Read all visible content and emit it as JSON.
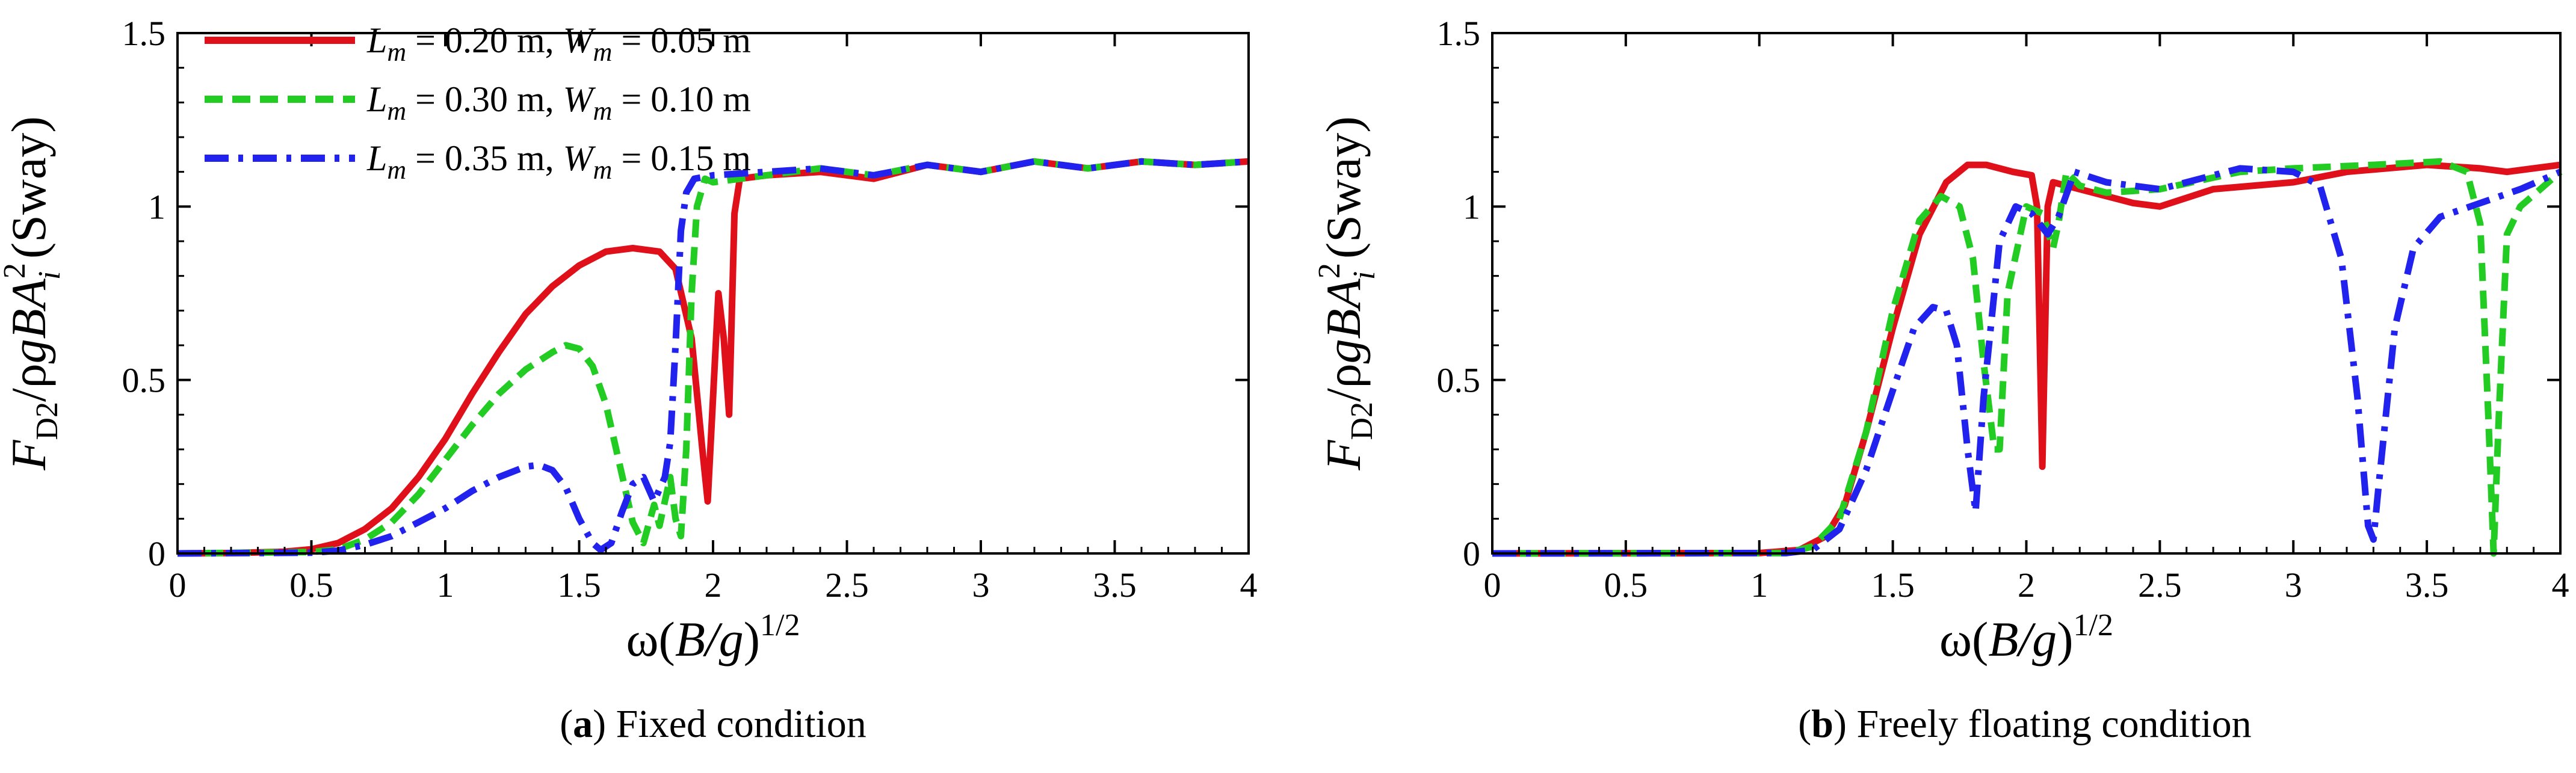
{
  "chart_data": [
    {
      "type": "line",
      "caption_label": "a",
      "caption_text": " Fixed condition",
      "xlabel": {
        "main": "ω(",
        "italic": "B/g",
        "close": ")",
        "sup": "1/2"
      },
      "ylabel": {
        "f": "F",
        "sub": "D2",
        "mid": "/ρ",
        "g": "gBA",
        "sup": "2",
        "sub2": "i",
        "tail": " (Sway)"
      },
      "xlim": [
        0,
        4
      ],
      "ylim": [
        0,
        1.5
      ],
      "xticks": [
        "0",
        "0.5",
        "1",
        "1.5",
        "2",
        "2.5",
        "3",
        "3.5",
        "4"
      ],
      "yticks": [
        "0",
        "0.5",
        "1",
        "1.5"
      ],
      "legend": {
        "placement": "top-left",
        "entries": [
          {
            "l": "L",
            "lsub": "m",
            "lval": " = 0.20 m, ",
            "w": "W",
            "wsub": "m",
            "wval": " = 0.05 m"
          },
          {
            "l": "L",
            "lsub": "m",
            "lval": " = 0.30 m, ",
            "w": "W",
            "wsub": "m",
            "wval": " = 0.10 m"
          },
          {
            "l": "L",
            "lsub": "m",
            "lval": " = 0.35 m, ",
            "w": "W",
            "wsub": "m",
            "wval": " = 0.15 m"
          }
        ]
      },
      "series": [
        {
          "color": "#e0101a",
          "dash": "solid",
          "points": [
            [
              0,
              0
            ],
            [
              0.2,
              0.001
            ],
            [
              0.4,
              0.005
            ],
            [
              0.5,
              0.012
            ],
            [
              0.6,
              0.03
            ],
            [
              0.7,
              0.07
            ],
            [
              0.8,
              0.13
            ],
            [
              0.9,
              0.22
            ],
            [
              1.0,
              0.33
            ],
            [
              1.1,
              0.46
            ],
            [
              1.2,
              0.58
            ],
            [
              1.3,
              0.69
            ],
            [
              1.4,
              0.77
            ],
            [
              1.5,
              0.83
            ],
            [
              1.6,
              0.87
            ],
            [
              1.7,
              0.88
            ],
            [
              1.8,
              0.87
            ],
            [
              1.86,
              0.82
            ],
            [
              1.92,
              0.62
            ],
            [
              1.96,
              0.3
            ],
            [
              1.98,
              0.15
            ],
            [
              2.0,
              0.45
            ],
            [
              2.02,
              0.75
            ],
            [
              2.04,
              0.62
            ],
            [
              2.06,
              0.4
            ],
            [
              2.08,
              0.98
            ],
            [
              2.1,
              1.08
            ],
            [
              2.2,
              1.09
            ],
            [
              2.4,
              1.1
            ],
            [
              2.6,
              1.08
            ],
            [
              2.8,
              1.12
            ],
            [
              3.0,
              1.1
            ],
            [
              3.2,
              1.13
            ],
            [
              3.4,
              1.11
            ],
            [
              3.6,
              1.13
            ],
            [
              3.8,
              1.12
            ],
            [
              4.0,
              1.13
            ]
          ]
        },
        {
          "color": "#22cc22",
          "dash": "dashed",
          "points": [
            [
              0,
              0
            ],
            [
              0.5,
              0.004
            ],
            [
              0.6,
              0.012
            ],
            [
              0.7,
              0.04
            ],
            [
              0.8,
              0.09
            ],
            [
              0.9,
              0.17
            ],
            [
              1.0,
              0.27
            ],
            [
              1.1,
              0.37
            ],
            [
              1.2,
              0.46
            ],
            [
              1.3,
              0.53
            ],
            [
              1.4,
              0.58
            ],
            [
              1.45,
              0.6
            ],
            [
              1.5,
              0.59
            ],
            [
              1.55,
              0.54
            ],
            [
              1.6,
              0.43
            ],
            [
              1.65,
              0.26
            ],
            [
              1.7,
              0.09
            ],
            [
              1.74,
              0.03
            ],
            [
              1.78,
              0.14
            ],
            [
              1.8,
              0.08
            ],
            [
              1.84,
              0.22
            ],
            [
              1.86,
              0.1
            ],
            [
              1.88,
              0.05
            ],
            [
              1.9,
              0.3
            ],
            [
              1.92,
              0.75
            ],
            [
              1.94,
              1.0
            ],
            [
              1.97,
              1.08
            ],
            [
              2.0,
              1.07
            ],
            [
              2.2,
              1.09
            ],
            [
              2.4,
              1.11
            ],
            [
              2.6,
              1.09
            ],
            [
              2.8,
              1.12
            ],
            [
              3.0,
              1.1
            ],
            [
              3.2,
              1.13
            ],
            [
              3.4,
              1.11
            ],
            [
              3.6,
              1.13
            ],
            [
              3.8,
              1.12
            ],
            [
              4.0,
              1.13
            ]
          ]
        },
        {
          "color": "#2222ee",
          "dash": "dashdot",
          "points": [
            [
              0,
              0
            ],
            [
              0.5,
              0.002
            ],
            [
              0.6,
              0.008
            ],
            [
              0.7,
              0.025
            ],
            [
              0.8,
              0.05
            ],
            [
              0.9,
              0.09
            ],
            [
              1.0,
              0.13
            ],
            [
              1.1,
              0.18
            ],
            [
              1.2,
              0.22
            ],
            [
              1.3,
              0.25
            ],
            [
              1.35,
              0.255
            ],
            [
              1.4,
              0.24
            ],
            [
              1.45,
              0.19
            ],
            [
              1.5,
              0.1
            ],
            [
              1.55,
              0.03
            ],
            [
              1.58,
              0.01
            ],
            [
              1.62,
              0.03
            ],
            [
              1.66,
              0.12
            ],
            [
              1.7,
              0.2
            ],
            [
              1.74,
              0.22
            ],
            [
              1.78,
              0.15
            ],
            [
              1.82,
              0.22
            ],
            [
              1.84,
              0.32
            ],
            [
              1.86,
              0.6
            ],
            [
              1.88,
              0.93
            ],
            [
              1.9,
              1.04
            ],
            [
              1.93,
              1.08
            ],
            [
              2.0,
              1.09
            ],
            [
              2.2,
              1.1
            ],
            [
              2.4,
              1.11
            ],
            [
              2.6,
              1.09
            ],
            [
              2.8,
              1.12
            ],
            [
              3.0,
              1.1
            ],
            [
              3.2,
              1.13
            ],
            [
              3.4,
              1.11
            ],
            [
              3.6,
              1.13
            ],
            [
              3.8,
              1.12
            ],
            [
              4.0,
              1.13
            ]
          ]
        }
      ]
    },
    {
      "type": "line",
      "caption_label": "b",
      "caption_text": " Freely floating condition",
      "xlabel": {
        "main": "ω(",
        "italic": "B/g",
        "close": ")",
        "sup": "1/2"
      },
      "ylabel": {
        "f": "F",
        "sub": "D2",
        "mid": "/ρ",
        "g": "gBA",
        "sup": "2",
        "sub2": "i",
        "tail": " (Sway)"
      },
      "xlim": [
        0,
        4
      ],
      "ylim": [
        0,
        1.5
      ],
      "xticks": [
        "0",
        "0.5",
        "1",
        "1.5",
        "2",
        "2.5",
        "3",
        "3.5",
        "4"
      ],
      "yticks": [
        "0",
        "0.5",
        "1",
        "1.5"
      ],
      "series": [
        {
          "color": "#e0101a",
          "dash": "solid",
          "points": [
            [
              0,
              0
            ],
            [
              1.0,
              0.001
            ],
            [
              1.15,
              0.01
            ],
            [
              1.25,
              0.05
            ],
            [
              1.32,
              0.14
            ],
            [
              1.4,
              0.35
            ],
            [
              1.5,
              0.65
            ],
            [
              1.6,
              0.92
            ],
            [
              1.7,
              1.07
            ],
            [
              1.78,
              1.12
            ],
            [
              1.85,
              1.12
            ],
            [
              1.95,
              1.1
            ],
            [
              2.02,
              1.09
            ],
            [
              2.04,
              1.0
            ],
            [
              2.06,
              0.25
            ],
            [
              2.08,
              1.0
            ],
            [
              2.1,
              1.07
            ],
            [
              2.2,
              1.05
            ],
            [
              2.4,
              1.01
            ],
            [
              2.5,
              1.0
            ],
            [
              2.7,
              1.05
            ],
            [
              3.0,
              1.07
            ],
            [
              3.2,
              1.1
            ],
            [
              3.5,
              1.12
            ],
            [
              3.7,
              1.11
            ],
            [
              3.8,
              1.1
            ],
            [
              4.0,
              1.12
            ]
          ]
        },
        {
          "color": "#22cc22",
          "dash": "dashed",
          "points": [
            [
              0,
              0
            ],
            [
              1.1,
              0.001
            ],
            [
              1.2,
              0.02
            ],
            [
              1.3,
              0.1
            ],
            [
              1.4,
              0.35
            ],
            [
              1.5,
              0.7
            ],
            [
              1.6,
              0.96
            ],
            [
              1.68,
              1.03
            ],
            [
              1.75,
              1.0
            ],
            [
              1.8,
              0.85
            ],
            [
              1.84,
              0.55
            ],
            [
              1.88,
              0.3
            ],
            [
              1.9,
              0.3
            ],
            [
              1.93,
              0.75
            ],
            [
              2.0,
              1.0
            ],
            [
              2.06,
              0.98
            ],
            [
              2.1,
              0.88
            ],
            [
              2.12,
              0.95
            ],
            [
              2.15,
              1.1
            ],
            [
              2.2,
              1.06
            ],
            [
              2.3,
              1.04
            ],
            [
              2.5,
              1.05
            ],
            [
              2.8,
              1.1
            ],
            [
              3.0,
              1.11
            ],
            [
              3.3,
              1.12
            ],
            [
              3.55,
              1.13
            ],
            [
              3.65,
              1.1
            ],
            [
              3.7,
              0.95
            ],
            [
              3.73,
              0.4
            ],
            [
              3.75,
              0.0
            ],
            [
              3.77,
              0.4
            ],
            [
              3.8,
              0.92
            ],
            [
              3.85,
              1.0
            ],
            [
              4.0,
              1.1
            ]
          ]
        },
        {
          "color": "#2222ee",
          "dash": "dashdot",
          "points": [
            [
              0,
              0
            ],
            [
              1.1,
              0.001
            ],
            [
              1.2,
              0.01
            ],
            [
              1.3,
              0.07
            ],
            [
              1.4,
              0.24
            ],
            [
              1.5,
              0.47
            ],
            [
              1.58,
              0.65
            ],
            [
              1.65,
              0.71
            ],
            [
              1.7,
              0.7
            ],
            [
              1.74,
              0.6
            ],
            [
              1.78,
              0.3
            ],
            [
              1.81,
              0.12
            ],
            [
              1.84,
              0.45
            ],
            [
              1.9,
              0.9
            ],
            [
              1.96,
              1.0
            ],
            [
              2.02,
              0.98
            ],
            [
              2.08,
              0.92
            ],
            [
              2.12,
              0.97
            ],
            [
              2.18,
              1.1
            ],
            [
              2.3,
              1.07
            ],
            [
              2.5,
              1.05
            ],
            [
              2.8,
              1.11
            ],
            [
              3.0,
              1.1
            ],
            [
              3.1,
              1.06
            ],
            [
              3.18,
              0.85
            ],
            [
              3.24,
              0.45
            ],
            [
              3.28,
              0.08
            ],
            [
              3.3,
              0.04
            ],
            [
              3.32,
              0.2
            ],
            [
              3.38,
              0.65
            ],
            [
              3.45,
              0.88
            ],
            [
              3.55,
              0.97
            ],
            [
              3.7,
              1.01
            ],
            [
              3.85,
              1.05
            ],
            [
              4.0,
              1.1
            ]
          ]
        }
      ]
    }
  ]
}
